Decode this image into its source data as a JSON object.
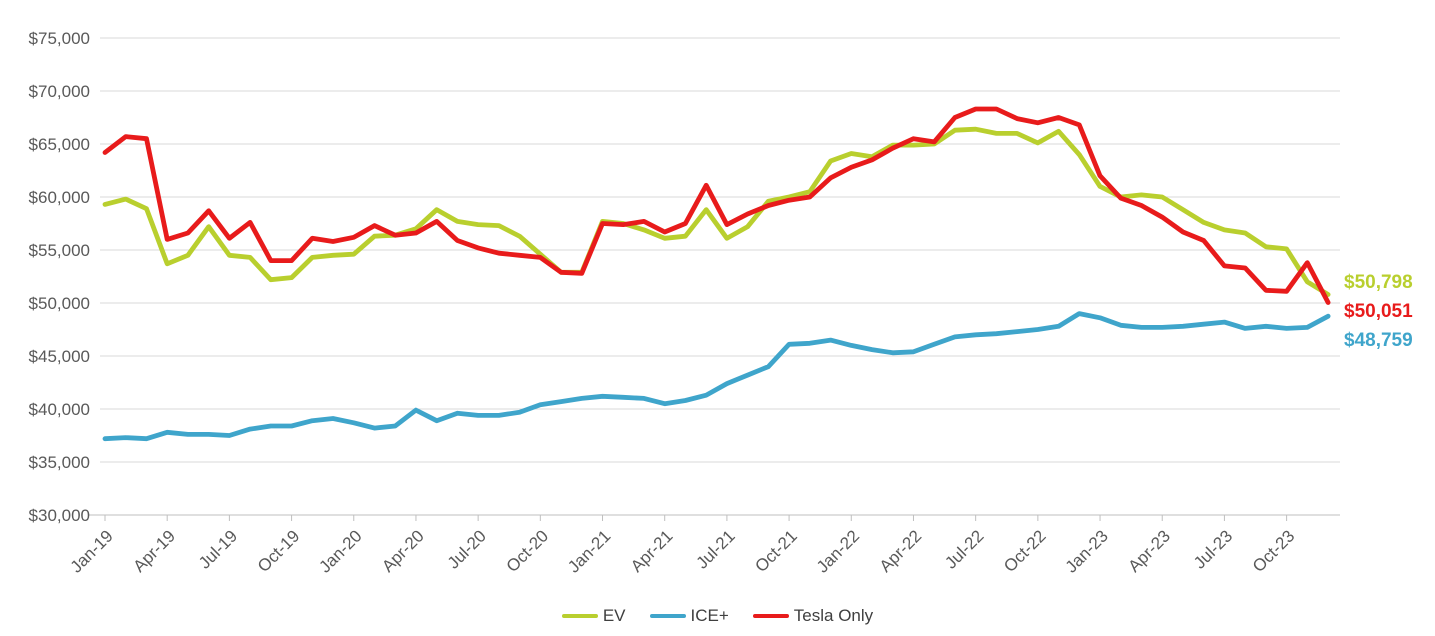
{
  "chart_data": {
    "type": "line",
    "title": "",
    "x": [
      "Jan-19",
      "Feb-19",
      "Mar-19",
      "Apr-19",
      "May-19",
      "Jun-19",
      "Jul-19",
      "Aug-19",
      "Sep-19",
      "Oct-19",
      "Nov-19",
      "Dec-19",
      "Jan-20",
      "Feb-20",
      "Mar-20",
      "Apr-20",
      "May-20",
      "Jun-20",
      "Jul-20",
      "Aug-20",
      "Sep-20",
      "Oct-20",
      "Nov-20",
      "Dec-20",
      "Jan-21",
      "Feb-21",
      "Mar-21",
      "Apr-21",
      "May-21",
      "Jun-21",
      "Jul-21",
      "Aug-21",
      "Sep-21",
      "Oct-21",
      "Nov-21",
      "Dec-21",
      "Jan-22",
      "Feb-22",
      "Mar-22",
      "Apr-22",
      "May-22",
      "Jun-22",
      "Jul-22",
      "Aug-22",
      "Sep-22",
      "Oct-22",
      "Nov-22",
      "Dec-22",
      "Jan-23",
      "Feb-23",
      "Mar-23",
      "Apr-23",
      "May-23",
      "Jun-23",
      "Jul-23",
      "Aug-23",
      "Sep-23",
      "Oct-23",
      "Nov-23",
      "Dec-23"
    ],
    "x_tick_every": 3,
    "y_axis": {
      "min": 30000,
      "max": 75000,
      "step": 5000,
      "tick_labels": [
        "$75,000",
        "$70,000",
        "$65,000",
        "$60,000",
        "$55,000",
        "$50,000",
        "$45,000",
        "$40,000",
        "$35,000",
        "$30,000"
      ]
    },
    "grid": true,
    "legend_position": "bottom",
    "series": [
      {
        "name": "EV",
        "color": "#b9cf2e",
        "values": [
          59300,
          59800,
          58900,
          53700,
          54500,
          57200,
          54500,
          54300,
          52200,
          52400,
          54300,
          54500,
          54600,
          56300,
          56400,
          57000,
          58800,
          57700,
          57400,
          57300,
          56300,
          54600,
          52900,
          52900,
          57700,
          57500,
          56900,
          56100,
          56300,
          58800,
          56100,
          57200,
          59600,
          60000,
          60500,
          63400,
          64100,
          63800,
          64900,
          64900,
          65000,
          66300,
          66400,
          66000,
          66000,
          65100,
          66200,
          64000,
          61000,
          60000,
          60200,
          60000,
          58800,
          57600,
          56900,
          56600,
          55300,
          55100,
          52000,
          50798
        ]
      },
      {
        "name": "ICE+",
        "color": "#3fa5cb",
        "values": [
          37200,
          37300,
          37200,
          37800,
          37600,
          37600,
          37500,
          38100,
          38400,
          38400,
          38900,
          39100,
          38700,
          38200,
          38400,
          39900,
          38900,
          39600,
          39400,
          39400,
          39700,
          40400,
          40700,
          41000,
          41200,
          41100,
          41000,
          40500,
          40800,
          41300,
          42400,
          43200,
          44000,
          46100,
          46200,
          46500,
          46000,
          45600,
          45300,
          45400,
          46100,
          46800,
          47000,
          47100,
          47300,
          47500,
          47800,
          49000,
          48600,
          47900,
          47700,
          47700,
          47800,
          48000,
          48200,
          47600,
          47800,
          47600,
          47700,
          48759
        ]
      },
      {
        "name": "Tesla Only",
        "color": "#e81b1b",
        "values": [
          64200,
          65700,
          65500,
          56000,
          56600,
          58700,
          56100,
          57600,
          54000,
          54000,
          56100,
          55800,
          56200,
          57300,
          56400,
          56600,
          57700,
          55900,
          55200,
          54700,
          54500,
          54300,
          52900,
          52800,
          57500,
          57400,
          57700,
          56700,
          57500,
          61100,
          57400,
          58400,
          59200,
          59700,
          60000,
          61800,
          62800,
          63500,
          64600,
          65500,
          65200,
          67500,
          68300,
          68300,
          67400,
          67000,
          67500,
          66800,
          62000,
          59900,
          59200,
          58100,
          56700,
          55900,
          53500,
          53300,
          51200,
          51100,
          53800,
          50051
        ]
      }
    ],
    "end_labels": [
      {
        "text": "$50,798",
        "series": "EV",
        "color": "#b9cf2e"
      },
      {
        "text": "$50,051",
        "series": "Tesla Only",
        "color": "#e81b1b"
      },
      {
        "text": "$48,759",
        "series": "ICE+",
        "color": "#3fa5cb"
      }
    ]
  },
  "colors": {
    "gridline": "#d9d9d9",
    "axis_line": "#bfbfbf",
    "tick_mark": "#bfbfbf",
    "axis_text": "#595959",
    "legend_text": "#3f3f3f",
    "background": "#ffffff"
  }
}
